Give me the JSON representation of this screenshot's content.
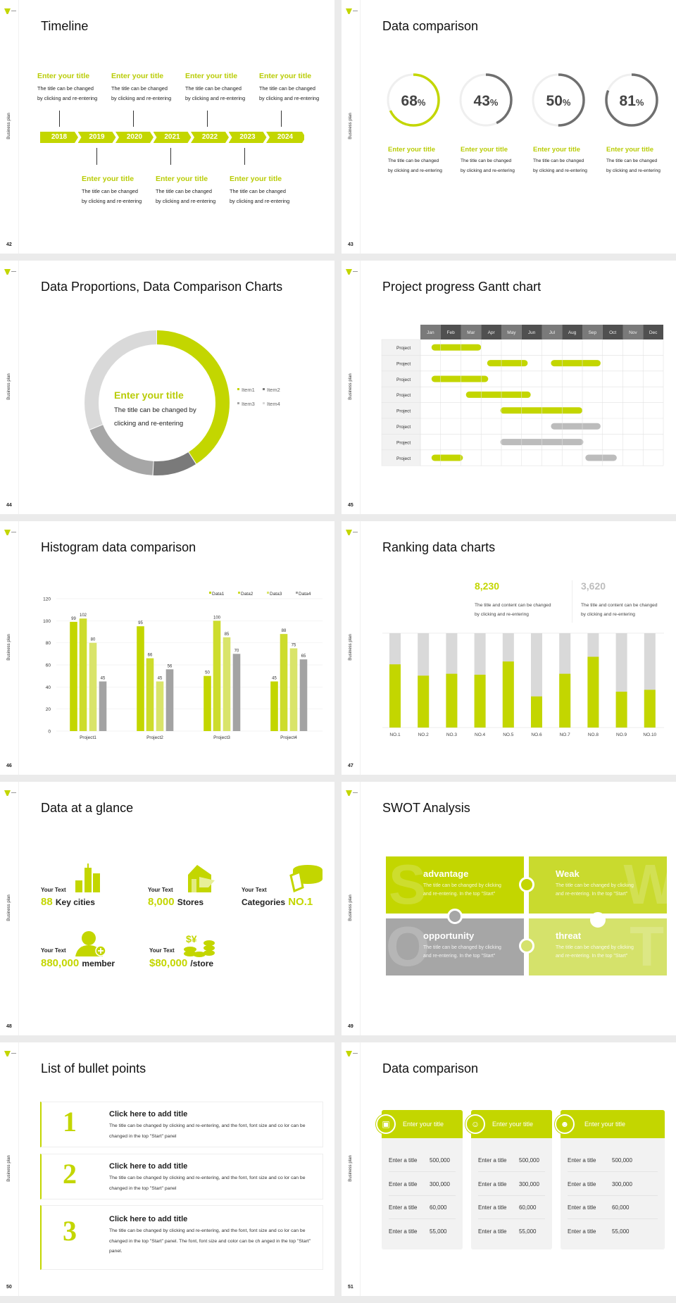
{
  "slide_label": "Business plan",
  "colors": {
    "accent": "#c3d600",
    "accent_mid": "#cddc2c",
    "accent_light": "#d9e46a",
    "gray": "#a6a6a6",
    "dark_gray": "#6f6f6f",
    "light_gray": "#d9d9d9"
  },
  "s42": {
    "page": "42",
    "title": "Timeline",
    "years": [
      "2018",
      "2019",
      "2020",
      "2021",
      "2022",
      "2023",
      "2024"
    ],
    "top_items": [
      {
        "title": "Enter your title",
        "line1": "The title can be changed",
        "line2": "by clicking and re-entering"
      },
      {
        "title": "Enter your title",
        "line1": "The title can be changed",
        "line2": "by clicking and re-entering"
      },
      {
        "title": "Enter your title",
        "line1": "The title can be changed",
        "line2": "by clicking and re-entering"
      },
      {
        "title": "Enter your title",
        "line1": "The title can be changed",
        "line2": "by clicking and re-entering"
      }
    ],
    "bottom_items": [
      {
        "title": "Enter your title",
        "line1": "The title can be changed",
        "line2": "by clicking and re-entering"
      },
      {
        "title": "Enter your title",
        "line1": "The title can be changed",
        "line2": "by clicking and re-entering"
      },
      {
        "title": "Enter your title",
        "line1": "The title can be changed",
        "line2": "by clicking and re-entering"
      }
    ]
  },
  "s43": {
    "page": "43",
    "title": "Data comparison",
    "gauges": [
      {
        "value": 68,
        "number": "68",
        "unit": "%",
        "color": "#c3d600",
        "title": "Enter your title",
        "line1": "The title can be changed",
        "line2": "by clicking and re-entering"
      },
      {
        "value": 43,
        "number": "43",
        "unit": "%",
        "color": "#6f6f6f",
        "title": "Enter your title",
        "line1": "The title can be changed",
        "line2": "by clicking and re-entering"
      },
      {
        "value": 50,
        "number": "50",
        "unit": "%",
        "color": "#6f6f6f",
        "title": "Enter your title",
        "line1": "The title can be changed",
        "line2": "by clicking and re-entering"
      },
      {
        "value": 81,
        "number": "81",
        "unit": "%",
        "color": "#6f6f6f",
        "title": "Enter your title",
        "line1": "The title can be changed",
        "line2": "by clicking and re-entering"
      }
    ]
  },
  "s44": {
    "page": "44",
    "title": "Data Proportions, Data Comparison Charts",
    "center_title": "Enter your title",
    "center_line1": "The title can be changed by",
    "center_line2": "clicking and re-entering"
  },
  "s45": {
    "page": "45",
    "title": "Project progress Gantt chart"
  },
  "s46": {
    "page": "46",
    "title": "Histogram data comparison"
  },
  "s47": {
    "page": "47",
    "title": "Ranking data charts",
    "stats": [
      {
        "value": "8,230",
        "color": "#c3d600",
        "line1": "The title and content can be changed",
        "line2": "by clicking and re-entering"
      },
      {
        "value": "3,620",
        "color": "#bdbdbd",
        "line1": "The title and content can be changed",
        "line2": "by clicking and re-entering"
      }
    ]
  },
  "s48": {
    "page": "48",
    "title": "Data at a glance",
    "items": [
      {
        "label": "Your Text",
        "number": "88",
        "text": "Key cities",
        "icon": "buildings-icon"
      },
      {
        "label": "Your Text",
        "number": "8,000",
        "text": "Stores",
        "icon": "store-icon"
      },
      {
        "label": "Your Text",
        "text": "Categories",
        "number": "NO.1",
        "icon": "pie-chart-icon"
      },
      {
        "label": "Your Text",
        "number": "880,000",
        "text": "member",
        "icon": "add-user-icon"
      },
      {
        "label": "Your Text",
        "number": "$80,000",
        "text": "/store",
        "icon": "coins-icon"
      }
    ]
  },
  "s49": {
    "page": "49",
    "title": "SWOT Analysis",
    "quadrants": [
      {
        "letter": "S",
        "title": "advantage",
        "line1": "The title can be changed by clicking",
        "line2": "and re-entering. In the top \"Start\"",
        "color": "#c3d600"
      },
      {
        "letter": "W",
        "title": "Weak",
        "line1": "The title can be changed by clicking",
        "line2": "and re-entering. In the top \"Start\"",
        "color": "#c9da2e"
      },
      {
        "letter": "O",
        "title": "opportunity",
        "line1": "The title can be changed by clicking",
        "line2": "and re-entering. In the top \"Start\"",
        "color": "#a6a6a6"
      },
      {
        "letter": "T",
        "title": "threat",
        "line1": "The title can be changed by clicking",
        "line2": "and re-entering. In the top \"Start\"",
        "color": "#d5e26b"
      }
    ]
  },
  "s50": {
    "page": "50",
    "title": "List of bullet points",
    "items": [
      {
        "number": "1",
        "title": "Click here to add title",
        "body": "The title can be changed by clicking and re-entering, and the font, font size and co lor can be changed in the top \"Start\" panel"
      },
      {
        "number": "2",
        "title": "Click here to add title",
        "body": "The title can be changed by clicking and re-entering, and the font, font size and co lor can be changed in the top \"Start\" panel"
      },
      {
        "number": "3",
        "title": "Click here to add title",
        "body": "The title can be changed by clicking and re-entering, and the font, font size and co lor can be changed in the top \"Start\" panel. The font, font size and color can be ch anged in the top \"Start\" panel."
      }
    ]
  },
  "s51": {
    "page": "51",
    "title": "Data comparison",
    "cards": [
      {
        "title": "Enter your title",
        "icon": "contact-card-icon",
        "rows": [
          {
            "label": "Enter a title",
            "value": "500,000"
          },
          {
            "label": "Enter a title",
            "value": "300,000"
          },
          {
            "label": "Enter a title",
            "value": "60,000"
          },
          {
            "label": "Enter a title",
            "value": "55,000"
          }
        ]
      },
      {
        "title": "Enter your title",
        "icon": "user-icon",
        "rows": [
          {
            "label": "Enter a title",
            "value": "500,000"
          },
          {
            "label": "Enter a title",
            "value": "300,000"
          },
          {
            "label": "Enter a title",
            "value": "60,000"
          },
          {
            "label": "Enter a title",
            "value": "55,000"
          }
        ]
      },
      {
        "title": "Enter your title",
        "icon": "group-icon",
        "rows": [
          {
            "label": "Enter a title",
            "value": "500,000"
          },
          {
            "label": "Enter a title",
            "value": "300,000"
          },
          {
            "label": "Enter a title",
            "value": "60,000"
          },
          {
            "label": "Enter a title",
            "value": "55,000"
          }
        ]
      }
    ]
  },
  "chart_data": [
    {
      "type": "pie",
      "donut": true,
      "categories": [
        "Item1",
        "Item2",
        "Item3",
        "Item4"
      ],
      "values": [
        41,
        10,
        18,
        31
      ],
      "colors": [
        "#c3d600",
        "#7a7a7a",
        "#a6a6a6",
        "#d9d9d9"
      ],
      "legend": "right"
    },
    {
      "type": "gantt",
      "categories": [
        "Jan",
        "Feb",
        "Mar",
        "Apr",
        "May",
        "Jun",
        "Jul",
        "Aug",
        "Sep",
        "Oct",
        "Nov",
        "Dec"
      ],
      "rows": [
        {
          "label": "Project",
          "bars": [
            {
              "start": 0.55,
              "end": 3.0,
              "color": "#c3d600"
            }
          ]
        },
        {
          "label": "Project",
          "bars": [
            {
              "start": 3.3,
              "end": 5.3,
              "color": "#c3d600"
            },
            {
              "start": 6.45,
              "end": 8.9,
              "color": "#c3d600"
            }
          ]
        },
        {
          "label": "Project",
          "bars": [
            {
              "start": 0.55,
              "end": 3.35,
              "color": "#c3d600"
            }
          ]
        },
        {
          "label": "Project",
          "bars": [
            {
              "start": 2.25,
              "end": 5.45,
              "color": "#c3d600"
            }
          ]
        },
        {
          "label": "Project",
          "bars": [
            {
              "start": 3.95,
              "end": 8.0,
              "color": "#c3d600"
            }
          ]
        },
        {
          "label": "Project",
          "bars": [
            {
              "start": 6.45,
              "end": 8.9,
              "color": "#bcbcbc"
            }
          ]
        },
        {
          "label": "Project",
          "bars": [
            {
              "start": 3.95,
              "end": 8.05,
              "color": "#bcbcbc"
            }
          ]
        },
        {
          "label": "Project",
          "bars": [
            {
              "start": 0.55,
              "end": 2.1,
              "color": "#c3d600"
            },
            {
              "start": 8.15,
              "end": 9.7,
              "color": "#bcbcbc"
            }
          ]
        }
      ]
    },
    {
      "type": "bar",
      "categories": [
        "Project1",
        "Project2",
        "Project3",
        "Project4"
      ],
      "series": [
        {
          "name": "Data1",
          "values": [
            99,
            95,
            50,
            45
          ],
          "color": "#c3d600"
        },
        {
          "name": "Data2",
          "values": [
            102,
            66,
            100,
            88
          ],
          "color": "#cddc2c"
        },
        {
          "name": "Data3",
          "values": [
            80,
            45,
            85,
            75
          ],
          "color": "#d9e46a"
        },
        {
          "name": "Data4",
          "values": [
            45,
            56,
            70,
            65
          ],
          "color": "#a3a3a3"
        }
      ],
      "ylim": [
        0,
        120
      ],
      "yticks": [
        "0",
        "20",
        "40",
        "60",
        "80",
        "100",
        "120"
      ],
      "grid": true,
      "legend": "top-right",
      "data_labels": true
    },
    {
      "type": "bar",
      "stacked": true,
      "categories": [
        "NO.1",
        "NO.2",
        "NO.3",
        "NO.4",
        "NO.5",
        "NO.6",
        "NO.7",
        "NO.8",
        "NO.9",
        "NO.10"
      ],
      "values": [
        67,
        55,
        57,
        56,
        70,
        33,
        57,
        75,
        38,
        40
      ],
      "ylim": [
        0,
        100
      ],
      "colors": [
        "#c3d600",
        "#d9d9d9"
      ]
    }
  ]
}
